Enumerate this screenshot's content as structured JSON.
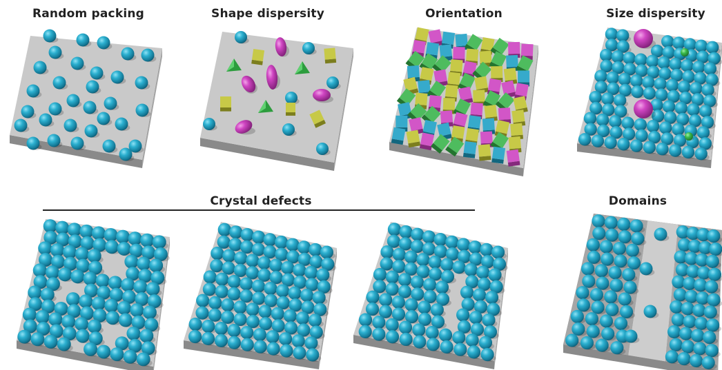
{
  "labels": {
    "random_packing": "Random packing",
    "shape_dispersity": "Shape dispersity",
    "orientation": "Orientation",
    "size_dispersity": "Size dispersity",
    "crystal_defects": "Crystal defects",
    "domains": "Domains"
  },
  "colors": {
    "sphere": "#1e9cbc",
    "cube_cyan": "#1b9ec4",
    "magenta": "#cc3fbf",
    "yellow_green": "#bfc22e",
    "green": "#36b348",
    "plate_top": "#c9c9c9",
    "plate_side": "#8f8f8f",
    "domain_band": "#a6a6a6"
  }
}
